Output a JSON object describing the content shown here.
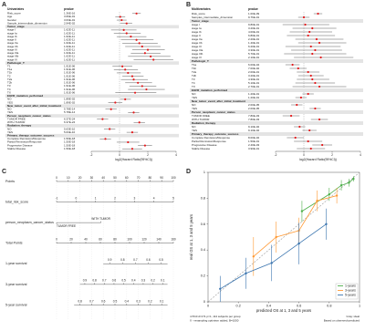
{
  "chart_data": [
    {
      "type": "forest",
      "panel_label": "A",
      "header": "Univariates",
      "pvalue_header": "pvalue",
      "x_label": "log2(Hazard Ratio(95%CI))",
      "xlim": [
        -2,
        4
      ],
      "xticks": [
        -2,
        0,
        2,
        4
      ],
      "ref_line": 0,
      "color": "#e41a1c",
      "groups": [
        {
          "categories": [
            "Risk_score",
            "Age",
            "Gender",
            "Sample_intermediate_dimension"
          ],
          "pvalues": [
            "1.36E-16",
            "3.66E-01",
            "3.63E-01",
            "2.94E-02"
          ],
          "values": [
            1.2,
            0.05,
            0.15,
            0.5
          ],
          "lower": [
            0.9,
            -0.3,
            -0.2,
            0.05
          ],
          "upper": [
            1.5,
            0.4,
            0.5,
            0.9
          ]
        },
        {
          "name": "Tumor_stage",
          "categories": [
            "stage I",
            "stage Ia",
            "stage Ib",
            "stage II",
            "stage IIa",
            "stage IIb",
            "stage III",
            "stage IIIa",
            "stage IIIb",
            "stage IV"
          ],
          "pvalues": [
            "1.62E-11",
            "1.62E-11",
            "1.62E-11",
            "1.62E-11",
            "1.62E-11",
            "1.62E-11",
            "1.62E-11",
            "1.62E-11",
            "1.62E-11",
            "1.62E-11"
          ],
          "values": [
            0.3,
            0.5,
            0.8,
            1.2,
            1.4,
            1.6,
            2.0,
            1.8,
            2.2,
            2.4
          ],
          "lower": [
            -0.6,
            -0.4,
            -0.2,
            0.1,
            0.2,
            0.4,
            0.9,
            0.8,
            0.6,
            1.0
          ],
          "upper": [
            1.2,
            1.5,
            1.9,
            2.4,
            2.7,
            2.9,
            3.2,
            2.9,
            3.6,
            3.8
          ]
        },
        {
          "name": "Pathologic_T",
          "categories": [
            "T1",
            "T1a",
            "T1b",
            "T2",
            "T2a",
            "T2b",
            "T3",
            "T4",
            "TX"
          ],
          "pvalues": [
            "1.91E-06",
            "1.91E-06",
            "1.91E-06",
            "1.91E-06",
            "1.91E-06",
            "1.91E-06",
            "1.91E-06",
            "1.91E-06",
            "1.91E-06"
          ],
          "values": [
            0.2,
            0.4,
            0.6,
            0.9,
            1.0,
            1.3,
            1.6,
            1.9,
            1.1
          ],
          "lower": [
            -0.5,
            -0.4,
            -0.2,
            0.2,
            0.1,
            0.4,
            0.7,
            0.6,
            -0.3
          ],
          "upper": [
            0.9,
            1.3,
            1.5,
            1.7,
            2.0,
            2.3,
            2.6,
            3.2,
            2.6
          ]
        },
        {
          "name": "EGFR_mutation_performed",
          "categories": [
            "NO",
            "YES"
          ],
          "pvalues": [
            "1.89E-02",
            "1.89E-02"
          ],
          "values": [
            0.4,
            -0.3
          ],
          "lower": [
            0.05,
            -0.8
          ],
          "upper": [
            0.8,
            0.2
          ]
        },
        {
          "name": "New_tumor_event_after_initial_treatment",
          "categories": [
            "NO",
            "YES"
          ],
          "pvalues": [
            "5.78E-14",
            "5.78E-14"
          ],
          "values": [
            -0.6,
            1.0
          ],
          "lower": [
            -1.0,
            0.6
          ],
          "upper": [
            -0.2,
            1.4
          ]
        },
        {
          "name": "Person_neoplasm_cancer_status",
          "categories": [
            "TUMOR FREE",
            "WITH TUMOR"
          ],
          "pvalues": [
            "6.37E-24",
            "6.37E-24"
          ],
          "values": [
            -1.2,
            1.4
          ],
          "lower": [
            -1.6,
            1.0
          ],
          "upper": [
            -0.8,
            1.8
          ]
        },
        {
          "name": "Radiation_therapy",
          "categories": [
            "NO",
            "YES"
          ],
          "pvalues": [
            "5.63E-10",
            "5.63E-10"
          ],
          "values": [
            -0.7,
            0.9
          ],
          "lower": [
            -1.1,
            0.5
          ],
          "upper": [
            -0.3,
            1.3
          ]
        },
        {
          "name": "Primary_therapy_outcome_success",
          "categories": [
            "Complete Remission/Response",
            "Partial Remission/Response",
            "Progressive Disease",
            "Stable Disease"
          ],
          "pvalues": [
            "1.50E-18",
            "1.50E-18",
            "1.50E-18",
            "1.50E-18"
          ],
          "values": [
            -1.0,
            0.6,
            1.8,
            0.9
          ],
          "lower": [
            -1.4,
            -0.2,
            1.3,
            0.2
          ],
          "upper": [
            -0.6,
            1.4,
            2.3,
            1.6
          ]
        }
      ]
    },
    {
      "type": "forest",
      "panel_label": "B",
      "header": "Multivariates",
      "pvalue_header": "pvalue",
      "x_label": "log2(Hazard Ratio(95%CI))",
      "xlim": [
        -2,
        4
      ],
      "xticks": [
        -2,
        0,
        2,
        4
      ],
      "ref_line": 0,
      "color": "#e41a1c",
      "groups": [
        {
          "categories": [
            "Risk_score",
            "Samples_intermediate_dimension"
          ],
          "pvalues": [
            "1.00E-09",
            "9.76E-01"
          ],
          "values": [
            1.0,
            0.0
          ],
          "lower": [
            0.7,
            -0.4
          ],
          "upper": [
            1.3,
            0.4
          ]
        },
        {
          "name": "Tumor_stage",
          "categories": [
            "stage I",
            "stage Ia",
            "stage Ib",
            "stage II",
            "stage IIa",
            "stage IIb",
            "stage III",
            "stage IIIa",
            "stage IIIb",
            "stage IV"
          ],
          "pvalues": [
            "9.80E-01",
            "3.20E-01",
            "4.00E-01",
            "6.80E-01",
            "2.20E-01",
            "1.40E-01",
            "6.20E-01",
            "3.30E-01",
            "5.70E-01",
            "2.10E-01"
          ],
          "values": [
            0.1,
            0.6,
            0.4,
            0.3,
            0.9,
            1.1,
            0.5,
            0.8,
            0.6,
            1.2
          ],
          "lower": [
            -1.5,
            -0.8,
            -1.0,
            -1.2,
            -0.6,
            -0.4,
            -1.3,
            -0.9,
            -1.4,
            -0.7
          ],
          "upper": [
            1.8,
            2.3,
            2.0,
            2.2,
            2.8,
            3.0,
            2.6,
            2.7,
            3.0,
            3.5
          ]
        },
        {
          "name": "Pathologic_T",
          "categories": [
            "T1a",
            "T1b",
            "T2a",
            "T2b",
            "T3",
            "T4",
            "TX"
          ],
          "pvalues": [
            "6.00E-04",
            "7.00E-02",
            "2.00E-01",
            "3.20E-01",
            "4.30E-01",
            "5.10E-01",
            "2.70E-01"
          ],
          "values": [
            -0.8,
            -0.4,
            0.3,
            0.5,
            0.6,
            0.8,
            1.1
          ],
          "lower": [
            -1.3,
            -1.0,
            -0.5,
            -0.4,
            -0.5,
            -0.6,
            -0.8
          ],
          "upper": [
            -0.3,
            0.2,
            1.1,
            1.4,
            1.8,
            2.2,
            3.0
          ]
        },
        {
          "name": "EGFR_mutation_performed",
          "categories": [
            "NO",
            "YES"
          ],
          "pvalues": [
            "1.20E-01",
            "1.20E-01"
          ],
          "values": [
            0.3,
            -0.2
          ],
          "lower": [
            -0.1,
            -0.6
          ],
          "upper": [
            0.7,
            0.2
          ]
        },
        {
          "name": "New_tumor_event_after_initial_treatment",
          "categories": [
            "NO",
            "YES"
          ],
          "pvalues": [
            "2.00E-05",
            "2.00E-05"
          ],
          "values": [
            -0.5,
            0.8
          ],
          "lower": [
            -0.9,
            0.4
          ],
          "upper": [
            -0.1,
            1.2
          ]
        },
        {
          "name": "Person_neoplasm_cancer_status",
          "categories": [
            "TUMOR FREE",
            "WITH TUMOR"
          ],
          "pvalues": [
            "7.80E-03",
            "7.80E-03"
          ],
          "values": [
            -0.9,
            1.1
          ],
          "lower": [
            -1.5,
            0.5
          ],
          "upper": [
            -0.3,
            1.7
          ]
        },
        {
          "name": "Radiation_therapy",
          "categories": [
            "NO",
            "YES"
          ],
          "pvalues": [
            "9.10E-02",
            "9.10E-02"
          ],
          "values": [
            -0.3,
            0.4
          ],
          "lower": [
            -0.7,
            -0.1
          ],
          "upper": [
            0.1,
            0.9
          ]
        },
        {
          "name": "Primary_therapy_outcome_success",
          "categories": [
            "Complete Remission/Response",
            "Partial Remission/Response",
            "Progressive Disease",
            "Stable Disease"
          ],
          "pvalues": [
            "8.00E-02",
            "1.50E-01",
            "2.40E-03",
            "3.90E-01"
          ],
          "values": [
            -0.6,
            0.3,
            1.3,
            0.5
          ],
          "lower": [
            -1.2,
            -0.7,
            0.6,
            -0.5
          ],
          "upper": [
            0.0,
            1.3,
            2.0,
            1.5
          ]
        }
      ]
    },
    {
      "type": "nomogram",
      "panel_label": "C",
      "scales": [
        {
          "name": "Points",
          "xlim": [
            0,
            100
          ],
          "span": [
            0,
            100
          ],
          "ticks": [
            0,
            10,
            20,
            30,
            40,
            50,
            60,
            70,
            80,
            90,
            100
          ]
        },
        {
          "name": "total_risk_score",
          "xlim": [
            -1,
            5
          ],
          "span": [
            0,
            100
          ],
          "ticks": [
            -1,
            0,
            1,
            2,
            3,
            4,
            5
          ]
        },
        {
          "name": "person_neoplasm_cancer_status",
          "levels": [
            "TUMOR FREE",
            "WITH TUMOR"
          ],
          "level_points": [
            0,
            38
          ]
        },
        {
          "name": "Total Points",
          "xlim": [
            0,
            160
          ],
          "span": [
            0,
            100
          ],
          "ticks": [
            0,
            20,
            40,
            60,
            80,
            100,
            120,
            140,
            160
          ]
        },
        {
          "name": "1-year survival",
          "xlim": [
            0.95,
            0.45
          ],
          "span": [
            40,
            95
          ],
          "ticks": [
            0.9,
            0.8,
            0.7,
            0.6,
            0.5
          ]
        },
        {
          "name": "3-year survival",
          "xlim": [
            0.95,
            0.05
          ],
          "span": [
            20,
            95
          ],
          "ticks": [
            0.9,
            0.8,
            0.7,
            0.6,
            0.5,
            0.4,
            0.3,
            0.2,
            0.1
          ]
        },
        {
          "name": "5-year survival",
          "xlim": [
            0.85,
            0.05
          ],
          "span": [
            15,
            95
          ],
          "ticks": [
            0.8,
            0.7,
            0.6,
            0.5,
            0.4,
            0.3,
            0.2,
            0.1
          ]
        }
      ]
    },
    {
      "type": "calibration",
      "panel_label": "D",
      "x_label": "predicted OS at 1, 3 and 5 years",
      "y_label": "real OS at 1, 3 and 5 years",
      "xlim": [
        0,
        1
      ],
      "ylim": [
        0,
        1
      ],
      "xticks": [
        0,
        0.2,
        0.4,
        0.6,
        0.8,
        1
      ],
      "yticks": [
        0,
        0.2,
        0.4,
        0.6,
        0.8,
        1
      ],
      "ideal_color": "#999999",
      "legend": "bottom-right",
      "notes": [
        "n=510 d=171 p=1, 114 subjects per group",
        "Gray: ideal",
        "X - resampling optimism added, B=1000",
        "Based on observed-predicted"
      ],
      "series": [
        {
          "name": "1-years",
          "color": "#4daf4a",
          "x": [
            0.62,
            0.8,
            0.88,
            0.93,
            0.96
          ],
          "values": [
            0.7,
            0.83,
            0.9,
            0.92,
            0.95
          ],
          "errors": [
            0.08,
            0.05,
            0.04,
            0.03,
            0.02
          ]
        },
        {
          "name": "3-years",
          "color": "#ff9933",
          "x": [
            0.3,
            0.45,
            0.6,
            0.72,
            0.85
          ],
          "values": [
            0.35,
            0.5,
            0.55,
            0.78,
            0.82
          ],
          "errors": [
            0.15,
            0.12,
            0.1,
            0.08,
            0.06
          ]
        },
        {
          "name": "5-years",
          "color": "#3b75af",
          "x": [
            0.08,
            0.25,
            0.42,
            0.6,
            0.78
          ],
          "values": [
            0.1,
            0.22,
            0.3,
            0.45,
            0.6
          ],
          "errors": [
            0.1,
            0.12,
            0.14,
            0.16,
            0.12
          ]
        }
      ]
    }
  ]
}
